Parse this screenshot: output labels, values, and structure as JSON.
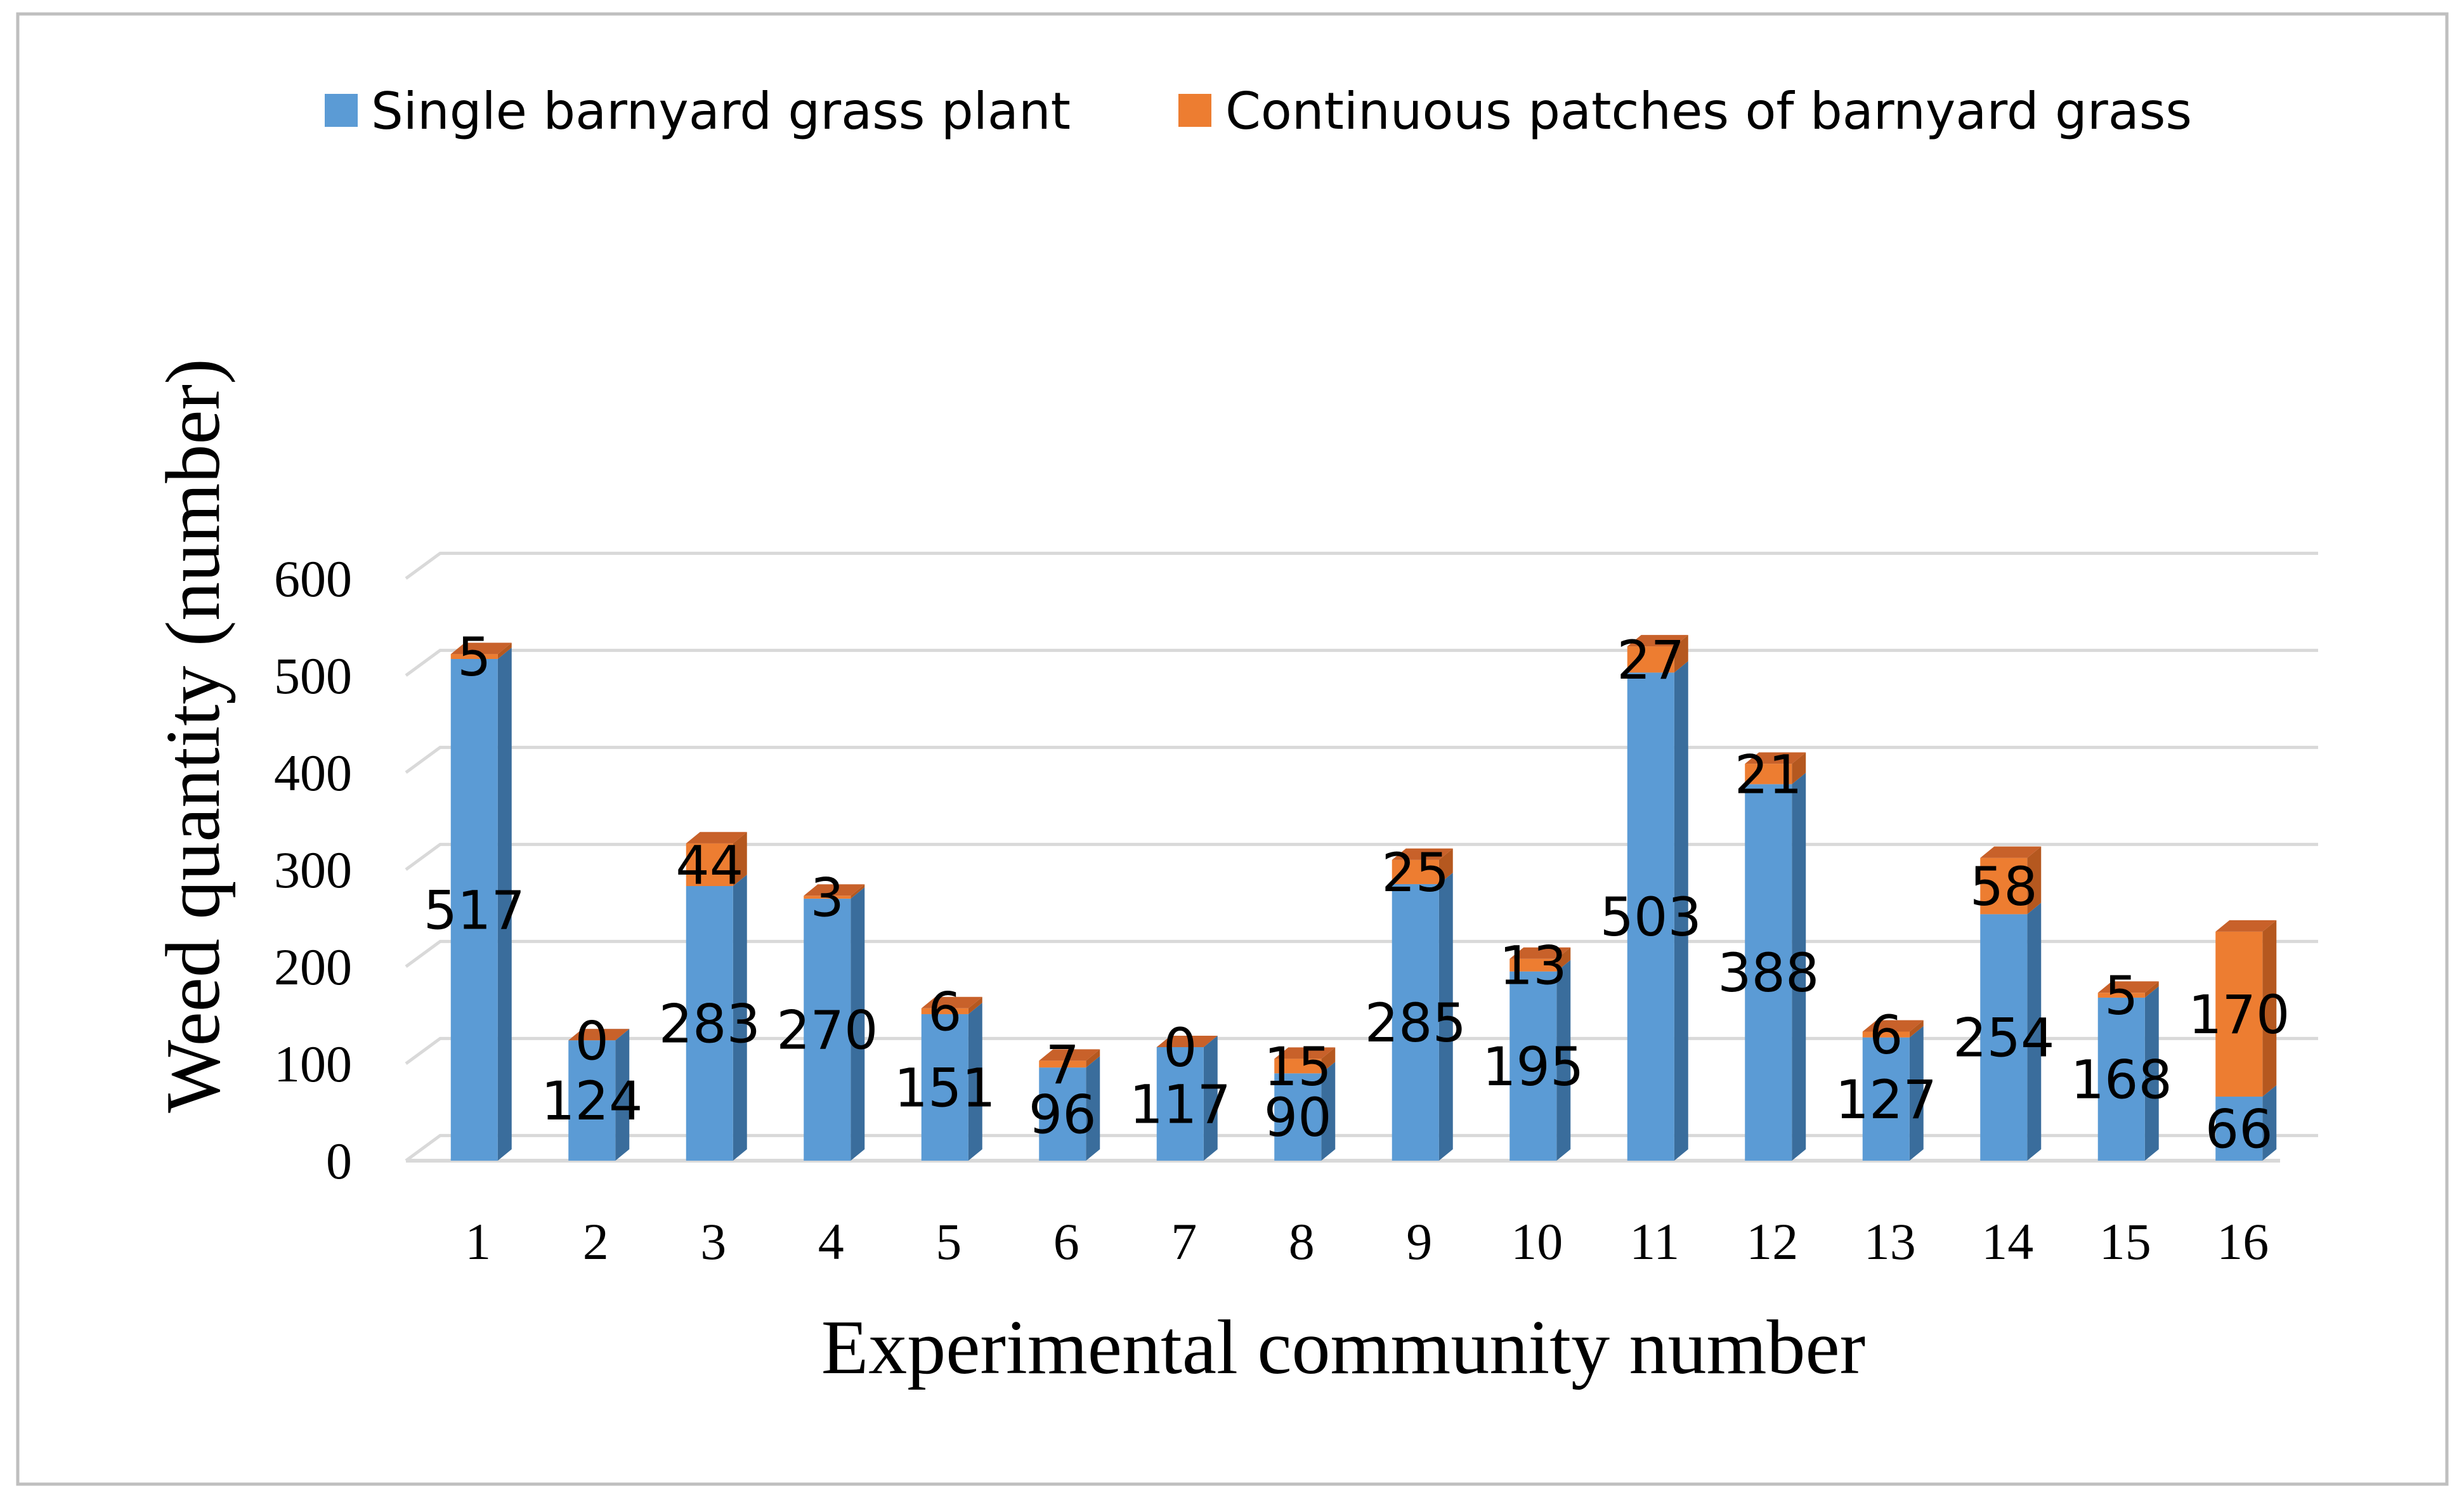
{
  "colors": {
    "single": "#5b9bd5",
    "single_top": "#7fb2e2",
    "single_side": "#3a6d9c",
    "continuous": "#ed7d31",
    "continuous_top": "#c8612a",
    "continuous_side": "#b5581f",
    "grid": "#d9d9d9",
    "border": "#bfbfbf"
  },
  "chart_data": {
    "type": "bar",
    "stacked": true,
    "categories": [
      "1",
      "2",
      "3",
      "4",
      "5",
      "6",
      "7",
      "8",
      "9",
      "10",
      "11",
      "12",
      "13",
      "14",
      "15",
      "16"
    ],
    "series": [
      {
        "name": "Single barnyard grass plant",
        "values": [
          517,
          124,
          283,
          270,
          151,
          96,
          117,
          90,
          285,
          195,
          503,
          388,
          127,
          254,
          168,
          66
        ]
      },
      {
        "name": "Continuous patches of barnyard grass",
        "values": [
          5,
          0,
          44,
          3,
          6,
          7,
          0,
          15,
          25,
          13,
          27,
          21,
          6,
          58,
          5,
          170
        ]
      }
    ],
    "xlabel": "Experimental community number",
    "ylabel": "Weed quantity (number)",
    "ylim": [
      0,
      600
    ],
    "yticks": [
      "0",
      "100",
      "200",
      "300",
      "400",
      "500",
      "600"
    ],
    "grid": true,
    "legend": "top"
  }
}
